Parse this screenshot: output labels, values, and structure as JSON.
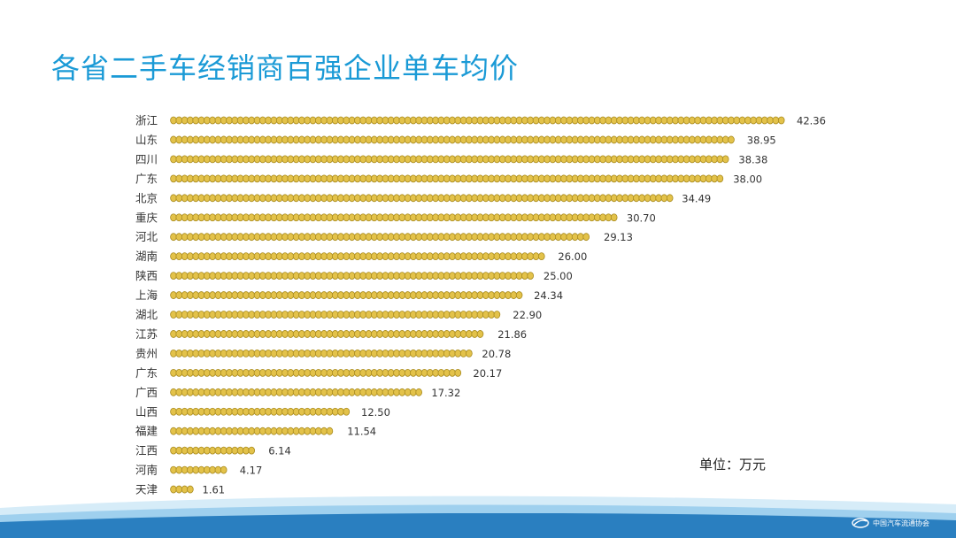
{
  "slide": {
    "title": "各省二手车经销商百强企业单车均价",
    "unit": "单位：万元",
    "footer_logo_text": "中国汽车流通协会"
  },
  "colors": {
    "title": "#1a9ad6",
    "coin_fill": "#e3c24a",
    "coin_edge": "#a88a1c",
    "label": "#333333",
    "wave_dark": "#2a7fc0",
    "wave_light": "#9fd0ee"
  },
  "chart_data": {
    "type": "bar",
    "orientation": "horizontal",
    "mark_style": "stacked coins",
    "categories": [
      "浙江",
      "山东",
      "四川",
      "广东",
      "北京",
      "重庆",
      "河北",
      "湖南",
      "陕西",
      "上海",
      "湖北",
      "江苏",
      "贵州",
      "广东",
      "广西",
      "山西",
      "福建",
      "江西",
      "河南",
      "天津"
    ],
    "values": [
      42.36,
      38.95,
      38.38,
      38.0,
      34.49,
      30.7,
      29.13,
      26.0,
      25.0,
      24.34,
      22.9,
      21.86,
      20.78,
      20.17,
      17.32,
      12.5,
      11.54,
      6.14,
      4.17,
      1.61
    ],
    "value_labels": [
      "42.36",
      "38.95",
      "38.38",
      "38.00",
      "34.49",
      "30.70",
      "29.13",
      "26.00",
      "25.00",
      "24.34",
      "22.90",
      "21.86",
      "20.78",
      "20.17",
      "17.32",
      "12.50",
      "11.54",
      "6.14",
      "4.17",
      "1.61"
    ],
    "xlim": [
      0,
      42.36
    ],
    "grid": false,
    "legend": "none"
  }
}
